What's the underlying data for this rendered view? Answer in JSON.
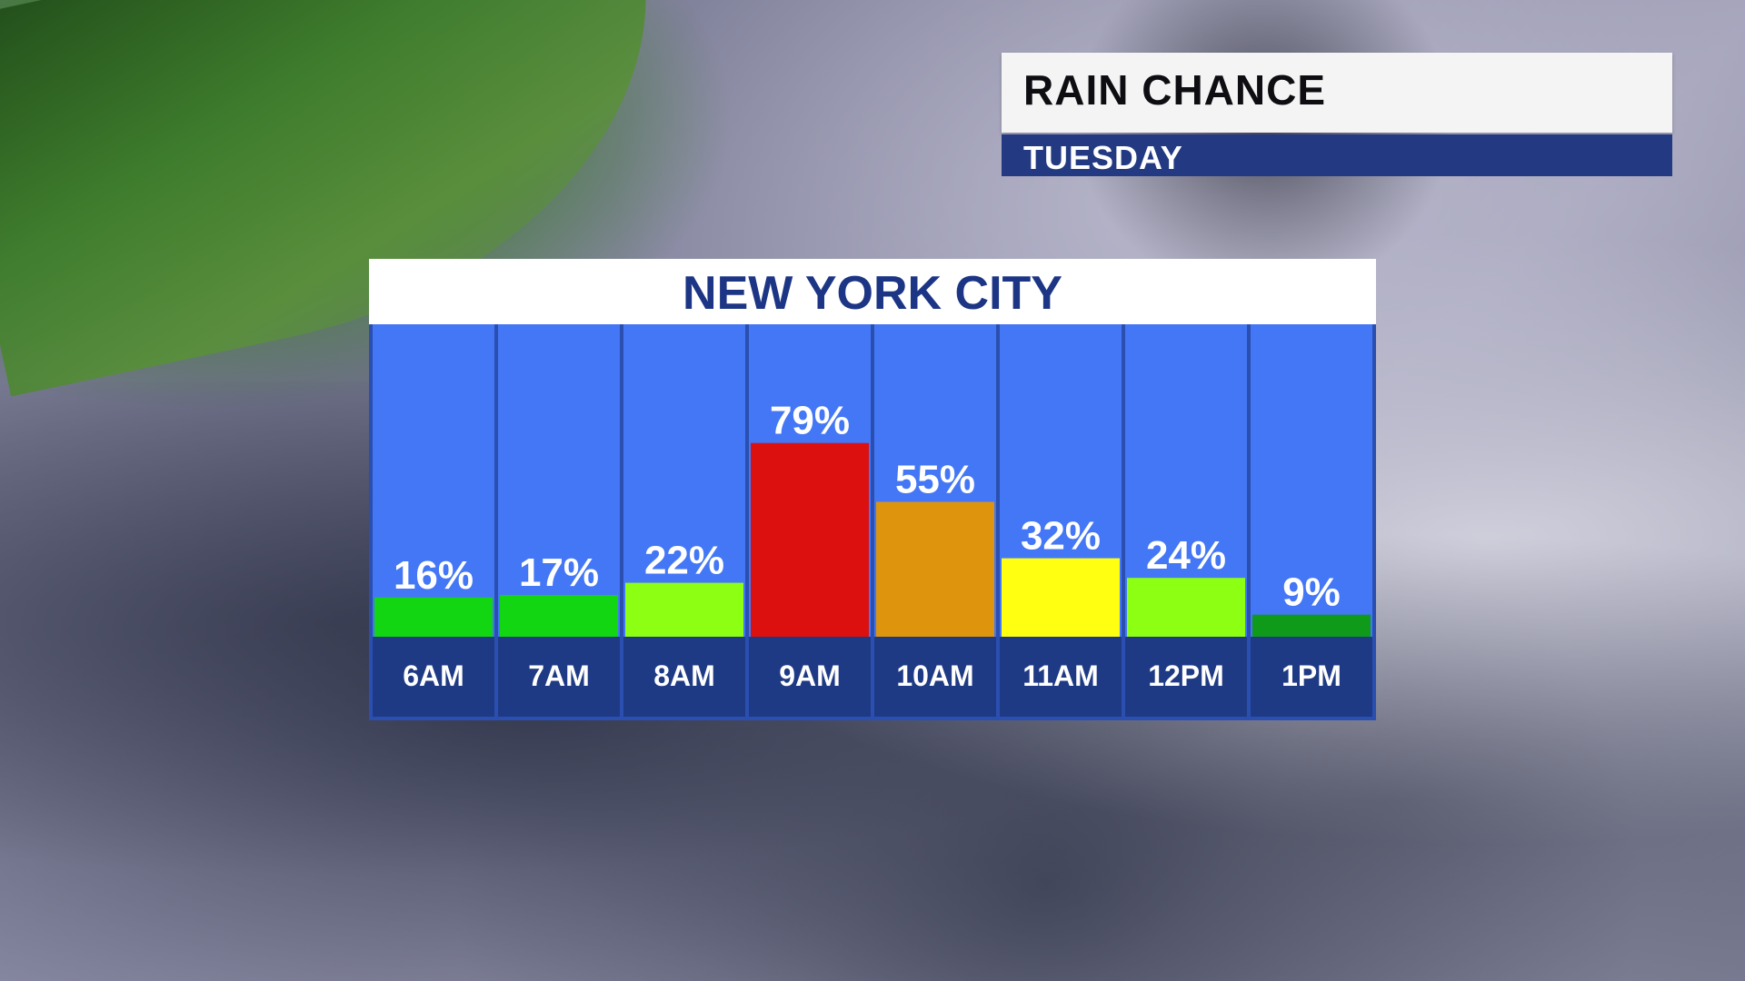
{
  "header": {
    "title": "RAIN CHANCE",
    "subtitle": "TUESDAY"
  },
  "colors": {
    "column_bg": "#4477f5",
    "label_bg": "#1f3a84",
    "header_text": "#1c3584",
    "subtitle_bg": "#233a82"
  },
  "chart_data": {
    "type": "bar",
    "title": "NEW YORK CITY",
    "categories": [
      "6AM",
      "7AM",
      "8AM",
      "9AM",
      "10AM",
      "11AM",
      "12PM",
      "1PM"
    ],
    "values": [
      16,
      17,
      22,
      79,
      55,
      32,
      24,
      9
    ],
    "value_labels": [
      "16%",
      "17%",
      "22%",
      "79%",
      "55%",
      "32%",
      "24%",
      "9%"
    ],
    "bar_colors": [
      "#13d613",
      "#13d613",
      "#8cff12",
      "#dd1010",
      "#de940c",
      "#ffff12",
      "#8cff12",
      "#0f9a1a"
    ],
    "ylim": [
      0,
      100
    ],
    "grid": false,
    "legend": "none"
  }
}
